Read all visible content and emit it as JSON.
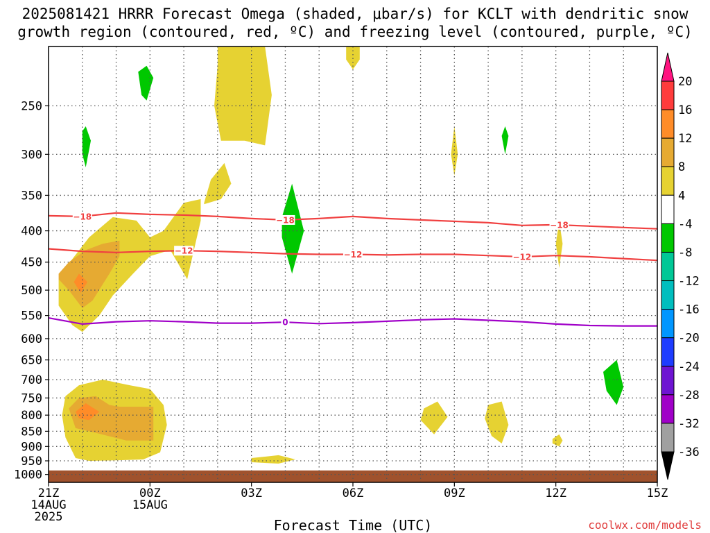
{
  "title": {
    "line1": "2025081421 HRRR Forecast Omega (shaded, μbar/s) for KCLT with dendritic snow",
    "line2": "growth region (contoured, red, ºC) and freezing level (contoured, purple, ºC)"
  },
  "credit": "coolwx.com/models",
  "colors": {
    "temp_line": "#f04040",
    "freezing_line": "#a000c8",
    "ground": "#a0522d",
    "grid": "#555555"
  },
  "chart_data": {
    "type": "heatmap",
    "xlabel": "Forecast Time (UTC)",
    "ylabel": "",
    "x_range_hours": [
      0,
      18
    ],
    "y_scale": "log",
    "y_range": [
      200,
      1030
    ],
    "grid": true,
    "x_ticks": [
      {
        "hour": 0,
        "lines": [
          "21Z",
          "14AUG",
          "2025"
        ]
      },
      {
        "hour": 3,
        "lines": [
          "00Z",
          "15AUG"
        ]
      },
      {
        "hour": 6,
        "lines": [
          "03Z"
        ]
      },
      {
        "hour": 9,
        "lines": [
          "06Z"
        ]
      },
      {
        "hour": 12,
        "lines": [
          "09Z"
        ]
      },
      {
        "hour": 15,
        "lines": [
          "12Z"
        ]
      },
      {
        "hour": 18,
        "lines": [
          "15Z"
        ]
      }
    ],
    "y_ticks": [
      250,
      300,
      350,
      400,
      450,
      500,
      550,
      600,
      650,
      700,
      750,
      800,
      850,
      900,
      950,
      1000
    ],
    "ground_top_hpa": 985,
    "colorbar": {
      "labels": [
        "20",
        "16",
        "12",
        "8",
        "4",
        "-4",
        "-8",
        "-12",
        "-16",
        "-20",
        "-24",
        "-28",
        "-32",
        "-36"
      ],
      "bins": [
        "#ff1480",
        "#ff3c3c",
        "#ff8c28",
        "#e6aa32",
        "#e6d232",
        "#ffffff",
        "#00c800",
        "#00c896",
        "#00bebe",
        "#0096ff",
        "#1e3cff",
        "#6e14d2",
        "#a000c8",
        "#a0a0a0"
      ]
    },
    "series": [
      {
        "name": "-18",
        "color": "#f04040",
        "x": [
          0,
          1,
          2,
          3,
          4,
          5,
          6,
          7,
          8,
          9,
          10,
          11,
          12,
          13,
          14,
          15,
          16,
          17,
          18
        ],
        "y": [
          378,
          379,
          374,
          376,
          377,
          379,
          382,
          384,
          382,
          379,
          382,
          384,
          386,
          388,
          392,
          391,
          393,
          395,
          397
        ]
      },
      {
        "name": "-12",
        "color": "#f04040",
        "x": [
          0,
          1,
          2,
          3,
          4,
          5,
          6,
          7,
          8,
          9,
          10,
          11,
          12,
          13,
          14,
          15,
          16,
          17,
          18
        ],
        "y": [
          428,
          432,
          434,
          432,
          431,
          432,
          434,
          436,
          437,
          437,
          438,
          437,
          437,
          439,
          441,
          439,
          441,
          444,
          447
        ]
      },
      {
        "name": "0",
        "color": "#a000c8",
        "x": [
          0,
          1,
          2,
          3,
          4,
          5,
          6,
          7,
          8,
          9,
          10,
          11,
          12,
          13,
          14,
          15,
          16,
          17,
          18
        ],
        "y": [
          555,
          568,
          563,
          561,
          563,
          566,
          566,
          564,
          567,
          565,
          562,
          559,
          557,
          560,
          563,
          568,
          571,
          572,
          572
        ]
      }
    ],
    "contour_labels": [
      {
        "text": "-18",
        "hour": 1.0,
        "hpa": 379,
        "color": "#f04040"
      },
      {
        "text": "-18",
        "hour": 7.0,
        "hpa": 384,
        "color": "#f04040"
      },
      {
        "text": "-18",
        "hour": 15.1,
        "hpa": 391,
        "color": "#f04040"
      },
      {
        "text": "-12",
        "hour": 4.0,
        "hpa": 431,
        "color": "#f04040"
      },
      {
        "text": "-12",
        "hour": 9.0,
        "hpa": 437,
        "color": "#f04040"
      },
      {
        "text": "-12",
        "hour": 14.0,
        "hpa": 441,
        "color": "#f04040"
      },
      {
        "text": "0",
        "hour": 7.0,
        "hpa": 564,
        "color": "#a000c8"
      }
    ],
    "shaded_regions": [
      {
        "value": 4,
        "color": "#e6d232",
        "points": [
          [
            5.0,
            200
          ],
          [
            6.4,
            200
          ],
          [
            6.6,
            240
          ],
          [
            6.4,
            290
          ],
          [
            5.8,
            285
          ],
          [
            5.1,
            285
          ],
          [
            4.9,
            250
          ],
          [
            5.0,
            215
          ]
        ]
      },
      {
        "value": 4,
        "color": "#e6d232",
        "points": [
          [
            4.6,
            360
          ],
          [
            4.8,
            330
          ],
          [
            5.2,
            310
          ],
          [
            5.4,
            335
          ],
          [
            5.1,
            355
          ],
          [
            4.6,
            362
          ]
        ]
      },
      {
        "value": 4,
        "color": "#e6d232",
        "points": [
          [
            8.8,
            200
          ],
          [
            9.2,
            200
          ],
          [
            9.2,
            210
          ],
          [
            9.0,
            218
          ],
          [
            8.8,
            210
          ]
        ]
      },
      {
        "value": 4,
        "color": "#e6d232",
        "points": [
          [
            12.0,
            270
          ],
          [
            12.1,
            300
          ],
          [
            12.0,
            325
          ],
          [
            11.9,
            300
          ]
        ]
      },
      {
        "value": 4,
        "color": "#e6d232",
        "points": [
          [
            15.1,
            385
          ],
          [
            15.2,
            420
          ],
          [
            15.1,
            460
          ],
          [
            15.0,
            420
          ]
        ]
      },
      {
        "value": 4,
        "color": "#e6d232",
        "points": [
          [
            0.3,
            480
          ],
          [
            0.5,
            460
          ],
          [
            1.2,
            410
          ],
          [
            1.9,
            380
          ],
          [
            2.6,
            385
          ],
          [
            3.0,
            410
          ],
          [
            3.4,
            400
          ],
          [
            4.0,
            360
          ],
          [
            4.5,
            355
          ],
          [
            4.5,
            385
          ],
          [
            4.1,
            480
          ],
          [
            3.6,
            430
          ],
          [
            3.0,
            440
          ],
          [
            2.5,
            470
          ],
          [
            1.9,
            510
          ],
          [
            1.5,
            550
          ],
          [
            1.0,
            585
          ],
          [
            0.7,
            570
          ],
          [
            0.3,
            530
          ]
        ]
      },
      {
        "value": 8,
        "color": "#e6aa32",
        "points": [
          [
            0.3,
            470
          ],
          [
            0.6,
            450
          ],
          [
            1.1,
            430
          ],
          [
            1.6,
            420
          ],
          [
            2.1,
            415
          ],
          [
            2.1,
            440
          ],
          [
            1.8,
            470
          ],
          [
            1.3,
            520
          ],
          [
            1.0,
            535
          ],
          [
            0.6,
            500
          ],
          [
            0.3,
            480
          ]
        ]
      },
      {
        "value": 12,
        "color": "#ff8c28",
        "points": [
          [
            0.9,
            470
          ],
          [
            1.15,
            485
          ],
          [
            0.95,
            505
          ],
          [
            0.75,
            485
          ]
        ]
      },
      {
        "value": 4,
        "color": "#e6d232",
        "points": [
          [
            0.5,
            745
          ],
          [
            0.9,
            715
          ],
          [
            1.6,
            700
          ],
          [
            2.4,
            715
          ],
          [
            3.0,
            725
          ],
          [
            3.4,
            770
          ],
          [
            3.5,
            830
          ],
          [
            3.3,
            920
          ],
          [
            2.8,
            945
          ],
          [
            2.0,
            948
          ],
          [
            1.2,
            950
          ],
          [
            0.8,
            940
          ],
          [
            0.5,
            870
          ],
          [
            0.4,
            800
          ]
        ]
      },
      {
        "value": 8,
        "color": "#e6aa32",
        "points": [
          [
            0.6,
            780
          ],
          [
            0.9,
            750
          ],
          [
            1.4,
            745
          ],
          [
            1.8,
            770
          ],
          [
            2.1,
            775
          ],
          [
            3.1,
            775
          ],
          [
            3.1,
            880
          ],
          [
            2.3,
            880
          ],
          [
            1.4,
            855
          ],
          [
            0.8,
            840
          ]
        ]
      },
      {
        "value": 12,
        "color": "#ff8c28",
        "points": [
          [
            0.8,
            790
          ],
          [
            1.1,
            765
          ],
          [
            1.5,
            790
          ],
          [
            1.2,
            815
          ],
          [
            0.9,
            810
          ]
        ]
      },
      {
        "value": 4,
        "color": "#e6d232",
        "points": [
          [
            6.0,
            940
          ],
          [
            6.8,
            930
          ],
          [
            7.3,
            945
          ],
          [
            6.8,
            960
          ],
          [
            6.0,
            955
          ]
        ]
      },
      {
        "value": 4,
        "color": "#e6d232",
        "points": [
          [
            11.1,
            780
          ],
          [
            11.5,
            760
          ],
          [
            11.8,
            805
          ],
          [
            11.4,
            860
          ],
          [
            11.0,
            815
          ]
        ]
      },
      {
        "value": 4,
        "color": "#e6d232",
        "points": [
          [
            13.0,
            770
          ],
          [
            13.4,
            760
          ],
          [
            13.6,
            830
          ],
          [
            13.4,
            890
          ],
          [
            13.1,
            865
          ],
          [
            12.9,
            810
          ]
        ]
      },
      {
        "value": 4,
        "color": "#e6d232",
        "points": [
          [
            14.9,
            875
          ],
          [
            15.1,
            860
          ],
          [
            15.2,
            880
          ],
          [
            15.1,
            900
          ],
          [
            14.9,
            890
          ]
        ]
      },
      {
        "value": -4,
        "color": "#00c800",
        "points": [
          [
            2.65,
            220
          ],
          [
            2.9,
            215
          ],
          [
            3.1,
            225
          ],
          [
            2.9,
            245
          ],
          [
            2.75,
            240
          ]
        ]
      },
      {
        "value": -4,
        "color": "#00c800",
        "points": [
          [
            1.0,
            275
          ],
          [
            1.1,
            270
          ],
          [
            1.25,
            285
          ],
          [
            1.1,
            315
          ],
          [
            1.0,
            300
          ]
        ]
      },
      {
        "value": -4,
        "color": "#00c800",
        "points": [
          [
            6.9,
            380
          ],
          [
            7.2,
            335
          ],
          [
            7.55,
            400
          ],
          [
            7.2,
            470
          ],
          [
            6.9,
            410
          ]
        ]
      },
      {
        "value": -4,
        "color": "#00c800",
        "points": [
          [
            13.4,
            280
          ],
          [
            13.5,
            270
          ],
          [
            13.6,
            280
          ],
          [
            13.5,
            300
          ]
        ]
      },
      {
        "value": -4,
        "color": "#00c800",
        "points": [
          [
            16.4,
            680
          ],
          [
            16.8,
            650
          ],
          [
            17.0,
            720
          ],
          [
            16.8,
            770
          ],
          [
            16.5,
            730
          ]
        ]
      }
    ]
  }
}
